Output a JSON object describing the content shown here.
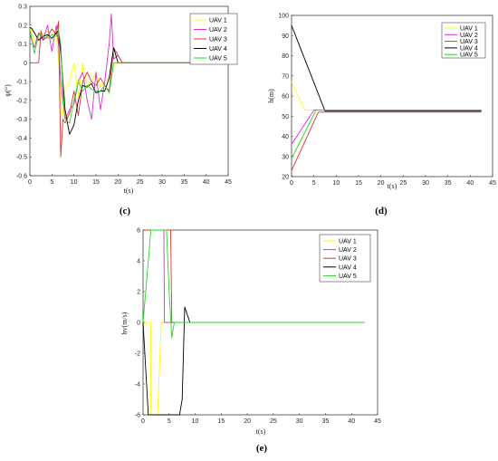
{
  "legend": [
    "UAV 1",
    "UAV 2",
    "UAV 3",
    "UAV 4",
    "UAV 5"
  ],
  "colors": {
    "UAV 1": "#ffff00",
    "UAV 2": "#d62fd6",
    "UAV 3": "#e03030",
    "UAV 4": "#000000",
    "UAV 5": "#21d921"
  },
  "chart_data": [
    {
      "type": "line",
      "caption": "(c)",
      "xlabel": "t(s)",
      "ylabel": "ψ(°)",
      "xlim": [
        0,
        45
      ],
      "ylim": [
        -0.6,
        0.3
      ],
      "xticks": [
        0,
        5,
        10,
        15,
        20,
        25,
        30,
        35,
        40,
        45
      ],
      "yticks": [
        -0.6,
        -0.5,
        -0.4,
        -0.3,
        -0.2,
        -0.1,
        0,
        0.1,
        0.2,
        0.3
      ],
      "legend_position": "top-right",
      "grid": false,
      "series": [
        {
          "name": "UAV 1",
          "x": [
            0,
            1,
            2,
            3,
            4,
            5,
            6,
            6.5,
            7,
            7.5,
            8,
            9,
            10,
            11,
            12,
            13,
            14,
            15,
            16,
            17,
            18,
            19,
            20,
            21,
            42.5
          ],
          "y": [
            0.2,
            0.1,
            0.16,
            0.15,
            0.17,
            0.15,
            0.16,
            0.02,
            -0.2,
            -0.3,
            -0.15,
            -0.1,
            0,
            -0.18,
            0,
            -0.12,
            -0.1,
            -0.05,
            -0.13,
            -0.1,
            -0.08,
            -0.02,
            0,
            0,
            0
          ]
        },
        {
          "name": "UAV 2",
          "x": [
            0,
            1,
            2,
            3,
            4,
            5,
            6,
            6.5,
            7,
            7.5,
            8,
            9,
            10,
            11,
            12,
            13,
            14,
            15,
            16,
            17,
            18,
            18.5,
            19,
            20,
            21,
            42.5
          ],
          "y": [
            0.15,
            0.08,
            0.16,
            0.12,
            0.2,
            0.06,
            0.2,
            0.1,
            -0.1,
            -0.2,
            -0.3,
            -0.25,
            -0.22,
            -0.1,
            -0.05,
            -0.2,
            -0.3,
            -0.05,
            -0.25,
            -0.1,
            0.1,
            0.26,
            0.02,
            0.04,
            0,
            0
          ]
        },
        {
          "name": "UAV 3",
          "x": [
            0,
            2,
            2.5,
            3,
            4,
            5,
            6,
            6.5,
            7,
            7.5,
            8,
            9,
            10,
            11,
            12,
            13,
            14,
            15,
            16,
            17,
            18,
            19,
            20,
            21,
            42.5
          ],
          "y": [
            0,
            0,
            0.17,
            0.12,
            0.14,
            0.18,
            0.15,
            0.22,
            -0.5,
            -0.3,
            -0.32,
            -0.27,
            -0.15,
            -0.28,
            -0.1,
            -0.05,
            -0.1,
            -0.12,
            -0.08,
            -0.12,
            -0.15,
            0.08,
            0.04,
            0,
            0
          ]
        },
        {
          "name": "UAV 4",
          "x": [
            0,
            0.5,
            1,
            2,
            3,
            4,
            5,
            6,
            6.5,
            7,
            8,
            9,
            10,
            11,
            12,
            13,
            14,
            15,
            16,
            17,
            18,
            19,
            20,
            42.5
          ],
          "y": [
            0.19,
            0.18,
            0.16,
            0.12,
            0.14,
            0.15,
            0.13,
            0.16,
            0.17,
            0.05,
            -0.25,
            -0.38,
            -0.33,
            -0.2,
            -0.12,
            -0.13,
            -0.11,
            -0.16,
            -0.15,
            -0.15,
            -0.08,
            0.08,
            0,
            0
          ]
        },
        {
          "name": "UAV 5",
          "x": [
            0,
            1,
            2,
            3,
            4,
            5,
            6,
            6.5,
            7,
            7.5,
            8,
            9,
            10,
            11,
            12,
            13,
            14,
            15,
            16,
            17,
            18,
            19,
            20,
            42.5
          ],
          "y": [
            0.18,
            0.05,
            0.15,
            0.14,
            0.13,
            0.15,
            0.14,
            0.17,
            0.1,
            -0.15,
            -0.3,
            -0.32,
            -0.2,
            -0.1,
            -0.15,
            -0.12,
            -0.14,
            -0.15,
            -0.15,
            -0.12,
            -0.16,
            0.0,
            0,
            0
          ]
        }
      ]
    },
    {
      "type": "line",
      "caption": "(d)",
      "xlabel": "t(s)",
      "ylabel": "h(m)",
      "xlim": [
        0,
        45
      ],
      "ylim": [
        20,
        100
      ],
      "xticks": [
        0,
        5,
        10,
        15,
        20,
        25,
        30,
        35,
        40,
        45
      ],
      "yticks": [
        20,
        30,
        40,
        50,
        60,
        70,
        80,
        90,
        100
      ],
      "legend_position": "top-right",
      "grid": false,
      "series": [
        {
          "name": "UAV 1",
          "x": [
            0,
            3,
            6,
            42.5
          ],
          "y": [
            67,
            53,
            53,
            53
          ]
        },
        {
          "name": "UAV 2",
          "x": [
            0,
            5,
            42.5
          ],
          "y": [
            36,
            53,
            53
          ]
        },
        {
          "name": "UAV 3",
          "x": [
            0,
            6,
            42.5
          ],
          "y": [
            23,
            52,
            52
          ]
        },
        {
          "name": "UAV 4",
          "x": [
            0,
            7.5,
            42.5
          ],
          "y": [
            95,
            52.5,
            52.5
          ]
        },
        {
          "name": "UAV 5",
          "x": [
            0,
            5.5,
            42.5
          ],
          "y": [
            29,
            53,
            53
          ]
        }
      ]
    },
    {
      "type": "line",
      "caption": "(e)",
      "xlabel": "t(s)",
      "ylabel": "hv(m/s)",
      "xlim": [
        0,
        45
      ],
      "ylim": [
        -6,
        6
      ],
      "xticks": [
        0,
        5,
        10,
        15,
        20,
        25,
        30,
        35,
        40,
        45
      ],
      "yticks": [
        -6,
        -4,
        -2,
        0,
        2,
        4,
        6
      ],
      "legend_position": "top-right",
      "grid": false,
      "series": [
        {
          "name": "UAV 1",
          "x": [
            0,
            1.5,
            1.5,
            2.8,
            3.5,
            42.5
          ],
          "y": [
            0,
            0,
            -6,
            -6,
            0,
            0
          ]
        },
        {
          "name": "UAV 2",
          "x": [
            0,
            1.8,
            4,
            4.1,
            42.5
          ],
          "y": [
            6,
            6,
            6,
            0,
            0
          ]
        },
        {
          "name": "UAV 3",
          "x": [
            0,
            1.7,
            5.3,
            5.5,
            42.5
          ],
          "y": [
            6,
            6,
            6,
            0,
            0
          ]
        },
        {
          "name": "UAV 4",
          "x": [
            0,
            1,
            2,
            7,
            7.5,
            8,
            9,
            42.5
          ],
          "y": [
            0,
            -6,
            -6,
            -6,
            -5,
            1,
            0,
            0
          ]
        },
        {
          "name": "UAV 5",
          "x": [
            0,
            1,
            1.5,
            4.5,
            5,
            5.5,
            6,
            42.5
          ],
          "y": [
            0,
            4,
            6,
            6,
            2,
            -1,
            0,
            0
          ]
        }
      ]
    }
  ]
}
